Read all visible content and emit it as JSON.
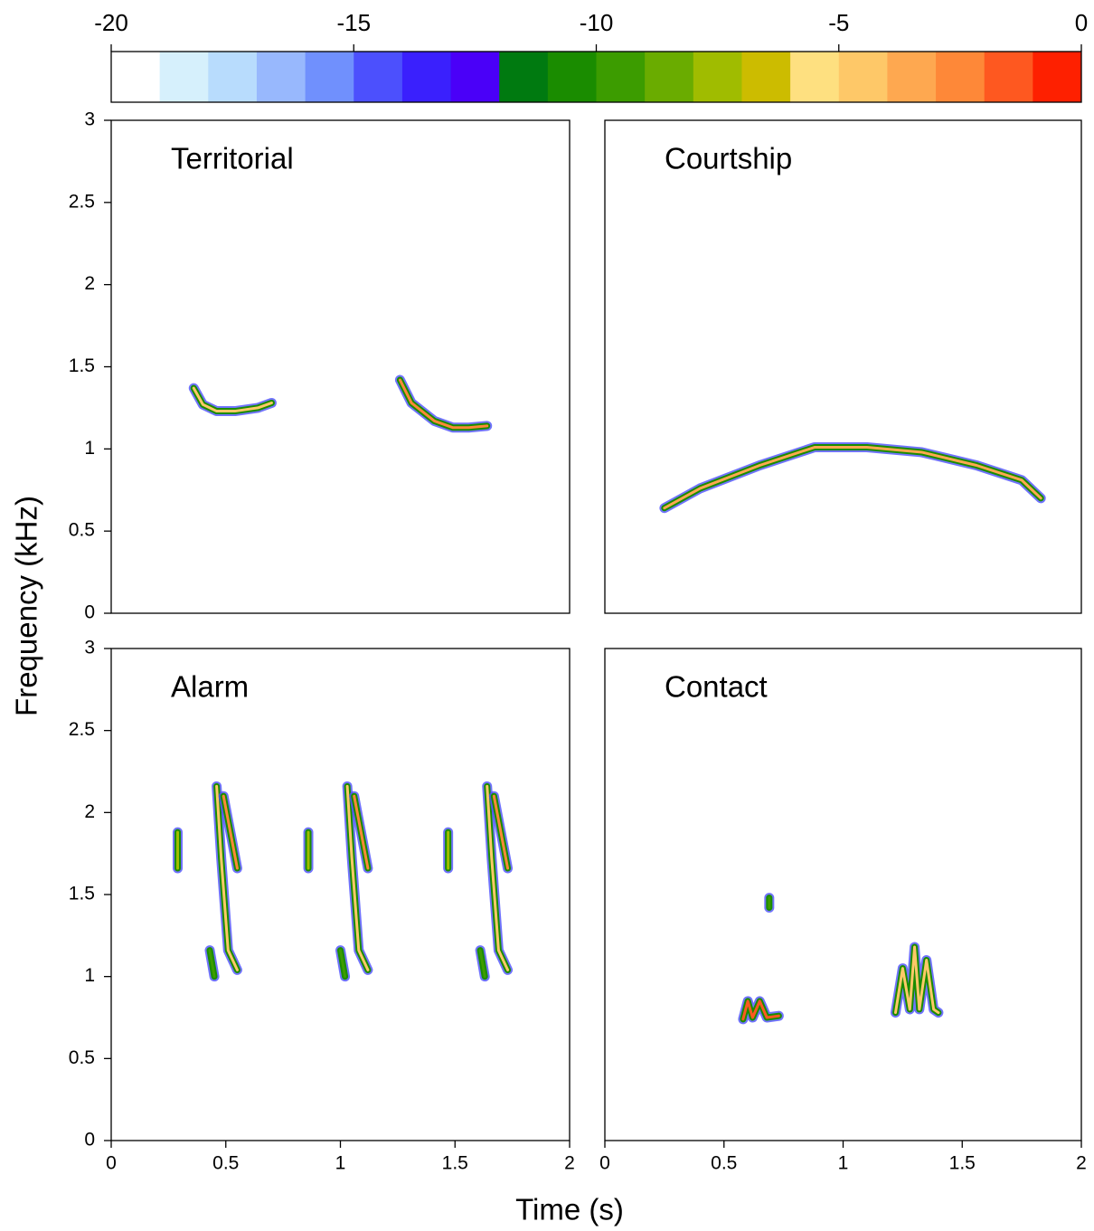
{
  "axis_labels": {
    "x": "Time (s)",
    "y": "Frequency (kHz)"
  },
  "chart_data": [
    {
      "type": "colorbar",
      "xlim": [
        -20,
        0
      ],
      "xticks": [
        -20,
        -15,
        -10,
        -5,
        0
      ],
      "colors": [
        "#ffffff",
        "#d6f0fc",
        "#b8dcfd",
        "#98b8fd",
        "#7090fd",
        "#4c50fd",
        "#3a20fd",
        "#4a00f8",
        "#007a10",
        "#1a8c00",
        "#3c9c00",
        "#6aac00",
        "#a0bc00",
        "#ccbc00",
        "#fee080",
        "#fec868",
        "#fea850",
        "#fe8838",
        "#fe5820",
        "#fe2000"
      ]
    },
    {
      "type": "spectrogram",
      "title": "Territorial",
      "xlim": [
        0,
        2
      ],
      "ylim": [
        0,
        3
      ],
      "yticks": [
        0,
        0.5,
        1,
        1.5,
        2,
        2.5,
        3
      ],
      "series": [
        {
          "color": "#fec868",
          "x": [
            0.36,
            0.4,
            0.46,
            0.54,
            0.64,
            0.7
          ],
          "y": [
            1.37,
            1.27,
            1.23,
            1.23,
            1.25,
            1.28
          ]
        },
        {
          "color": "#fe8838",
          "x": [
            1.26,
            1.31,
            1.41,
            1.49,
            1.56,
            1.64
          ],
          "y": [
            1.42,
            1.28,
            1.17,
            1.13,
            1.13,
            1.14
          ]
        }
      ]
    },
    {
      "type": "spectrogram",
      "title": "Courtship",
      "xlim": [
        0,
        2
      ],
      "ylim": [
        0,
        3
      ],
      "series": [
        {
          "color": "#fea850",
          "x": [
            0.25,
            0.4,
            0.65,
            0.88,
            1.1,
            1.33,
            1.56,
            1.75,
            1.83
          ],
          "y": [
            0.64,
            0.76,
            0.9,
            1.01,
            1.01,
            0.98,
            0.9,
            0.81,
            0.7
          ]
        }
      ]
    },
    {
      "type": "spectrogram",
      "title": "Alarm",
      "xlim": [
        0,
        2
      ],
      "ylim": [
        0,
        3
      ],
      "xticks": [
        0,
        0.5,
        1,
        1.5,
        2
      ],
      "yticks": [
        0,
        0.5,
        1,
        1.5,
        2,
        2.5,
        3
      ],
      "series": [
        {
          "color": "#fec868",
          "x": [
            0.46,
            0.48,
            0.51,
            0.55
          ],
          "y": [
            2.16,
            1.72,
            1.16,
            1.04
          ]
        },
        {
          "color": "#fe8838",
          "x": [
            0.49,
            0.55
          ],
          "y": [
            2.1,
            1.66
          ]
        },
        {
          "color": "#a0bc00",
          "x": [
            0.29,
            0.29
          ],
          "y": [
            1.88,
            1.66
          ]
        },
        {
          "color": "#3c9c00",
          "x": [
            0.43,
            0.45
          ],
          "y": [
            1.16,
            1.0
          ]
        },
        {
          "color": "#fec868",
          "x": [
            1.03,
            1.05,
            1.08,
            1.12
          ],
          "y": [
            2.16,
            1.72,
            1.16,
            1.04
          ]
        },
        {
          "color": "#fe8838",
          "x": [
            1.06,
            1.12
          ],
          "y": [
            2.1,
            1.66
          ]
        },
        {
          "color": "#a0bc00",
          "x": [
            0.86,
            0.86
          ],
          "y": [
            1.88,
            1.66
          ]
        },
        {
          "color": "#3c9c00",
          "x": [
            1.0,
            1.02
          ],
          "y": [
            1.16,
            1.0
          ]
        },
        {
          "color": "#fec868",
          "x": [
            1.64,
            1.66,
            1.69,
            1.73
          ],
          "y": [
            2.16,
            1.72,
            1.16,
            1.04
          ]
        },
        {
          "color": "#fe8838",
          "x": [
            1.67,
            1.73
          ],
          "y": [
            2.1,
            1.66
          ]
        },
        {
          "color": "#a0bc00",
          "x": [
            1.47,
            1.47
          ],
          "y": [
            1.88,
            1.66
          ]
        },
        {
          "color": "#3c9c00",
          "x": [
            1.61,
            1.63
          ],
          "y": [
            1.16,
            1.0
          ]
        }
      ]
    },
    {
      "type": "spectrogram",
      "title": "Contact",
      "xlim": [
        0,
        2
      ],
      "ylim": [
        0,
        3
      ],
      "xticks": [
        0,
        0.5,
        1,
        1.5,
        2
      ],
      "series": [
        {
          "color": "#fe5820",
          "x": [
            0.58,
            0.6,
            0.62,
            0.65,
            0.68,
            0.73
          ],
          "y": [
            0.74,
            0.85,
            0.75,
            0.85,
            0.75,
            0.76
          ]
        },
        {
          "color": "#fec868",
          "x": [
            1.22,
            1.25,
            1.28,
            1.3,
            1.32,
            1.35,
            1.38,
            1.4
          ],
          "y": [
            0.78,
            1.05,
            0.8,
            1.18,
            0.8,
            1.1,
            0.8,
            0.78
          ]
        },
        {
          "color": "#3c9c00",
          "x": [
            0.69,
            0.69
          ],
          "y": [
            1.42,
            1.48
          ]
        }
      ]
    }
  ]
}
